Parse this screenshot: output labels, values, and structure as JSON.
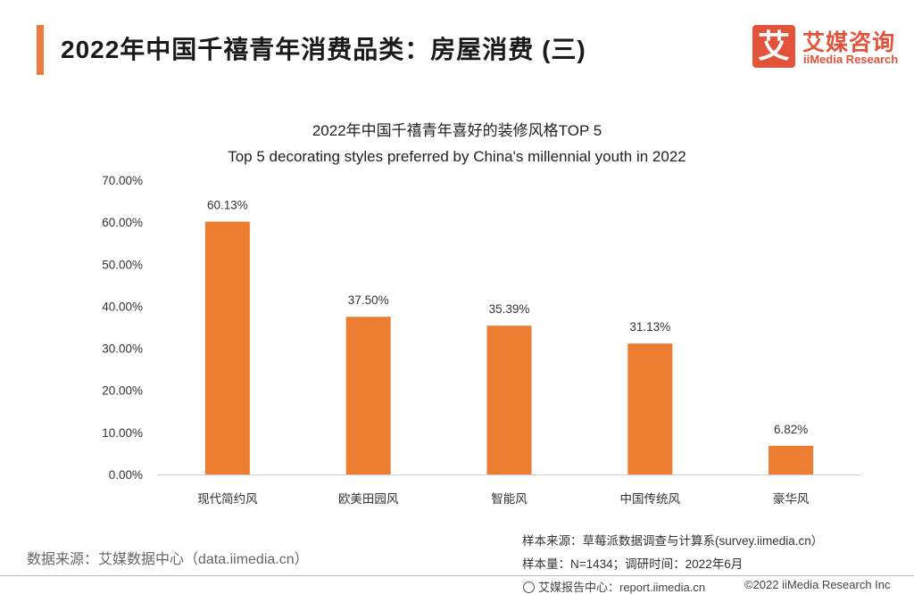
{
  "header": {
    "title": "2022年中国千禧青年消费品类：房屋消费 (三)"
  },
  "logo": {
    "mark": "艾",
    "name_cn": "艾媒咨询",
    "name_en": "iiMedia Research"
  },
  "colors": {
    "accent": "#f07b3f",
    "bar": "#ed7d31",
    "brand": "#e2533a"
  },
  "chart_data": {
    "type": "bar",
    "title": "2022年中国千禧青年喜好的装修风格TOP 5",
    "subtitle": "Top 5 decorating styles preferred by China's millennial youth in 2022",
    "categories": [
      "现代简约风",
      "欧美田园风",
      "智能风",
      "中国传统风",
      "豪华风"
    ],
    "values": [
      60.13,
      37.5,
      35.39,
      31.13,
      6.82
    ],
    "value_labels": [
      "60.13%",
      "37.50%",
      "35.39%",
      "31.13%",
      "6.82%"
    ],
    "ylim": [
      0,
      70
    ],
    "yticks": [
      "0.00%",
      "10.00%",
      "20.00%",
      "30.00%",
      "40.00%",
      "50.00%",
      "60.00%",
      "70.00%"
    ],
    "xlabel": "",
    "ylabel": "",
    "grid": false,
    "legend": "none"
  },
  "footer": {
    "source_left": "数据来源：艾媒数据中心（data.iimedia.cn）",
    "sample_source": "样本来源：草莓派数据调查与计算系(survey.iimedia.cn）",
    "sample_size": "样本量：N=1434；调研时间：2022年6月",
    "report_site": "艾媒报告中心：report.iimedia.cn",
    "copyright": "©2022 iiMedia Research Inc"
  }
}
